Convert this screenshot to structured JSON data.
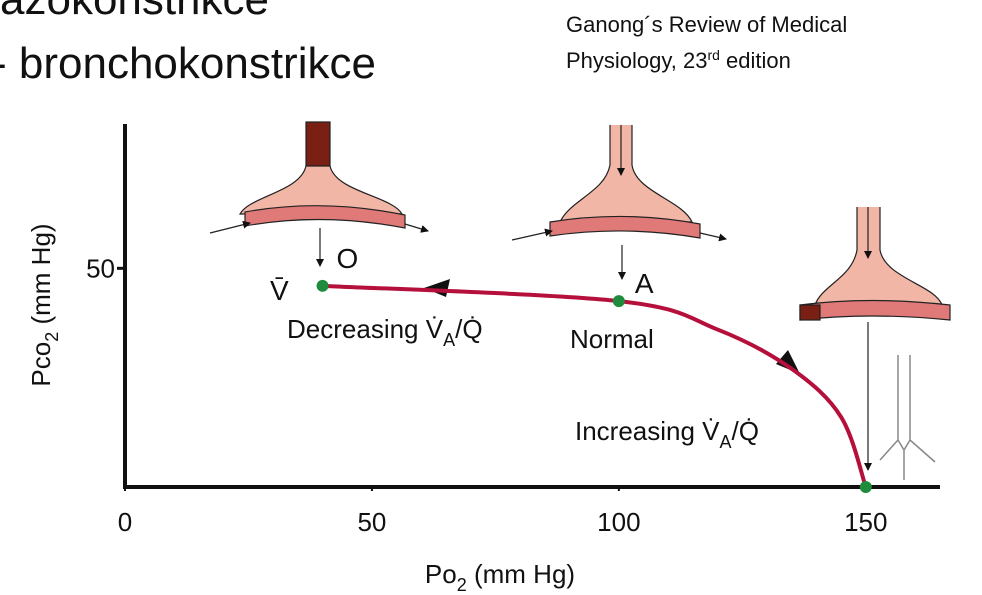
{
  "header": {
    "line1": "azokonstrikce",
    "line2": "- bronchokonstrikce"
  },
  "citation": {
    "line1": "Ganong´s Review of Medical",
    "line2_pre": "Physiology, 23",
    "line2_sup": "rd",
    "line2_post": " edition"
  },
  "chart_data": {
    "type": "line",
    "xlabel": {
      "pre": "Po",
      "sub": "2",
      "post": " (mm Hg)"
    },
    "ylabel": {
      "pre": "Pco",
      "sub": "2",
      "post": " (mm Hg)"
    },
    "xlim": [
      0,
      163
    ],
    "ylim": [
      0,
      83
    ],
    "xticks": [
      0,
      50,
      100,
      150
    ],
    "yticks": [
      50
    ],
    "series": [
      {
        "color": "#b5103c",
        "x": [
          40,
          100,
          120,
          135,
          145,
          150
        ],
        "values": [
          46,
          42.5,
          36,
          27,
          16,
          0
        ]
      }
    ],
    "marker_color": "#1e8c3c",
    "points": [
      {
        "x": 40,
        "y": 46,
        "label": "O"
      },
      {
        "x": 100,
        "y": 42.5,
        "label": "A"
      },
      {
        "x": 150,
        "y": 0
      }
    ],
    "annotations": [
      {
        "text": "V̄"
      },
      {
        "pre": "Decreasing V̇",
        "sub": "A",
        "post": "/Q̇"
      },
      {
        "text": "Normal"
      },
      {
        "pre": "Increasing V̇",
        "sub": "A",
        "post": "/Q̇"
      }
    ]
  }
}
